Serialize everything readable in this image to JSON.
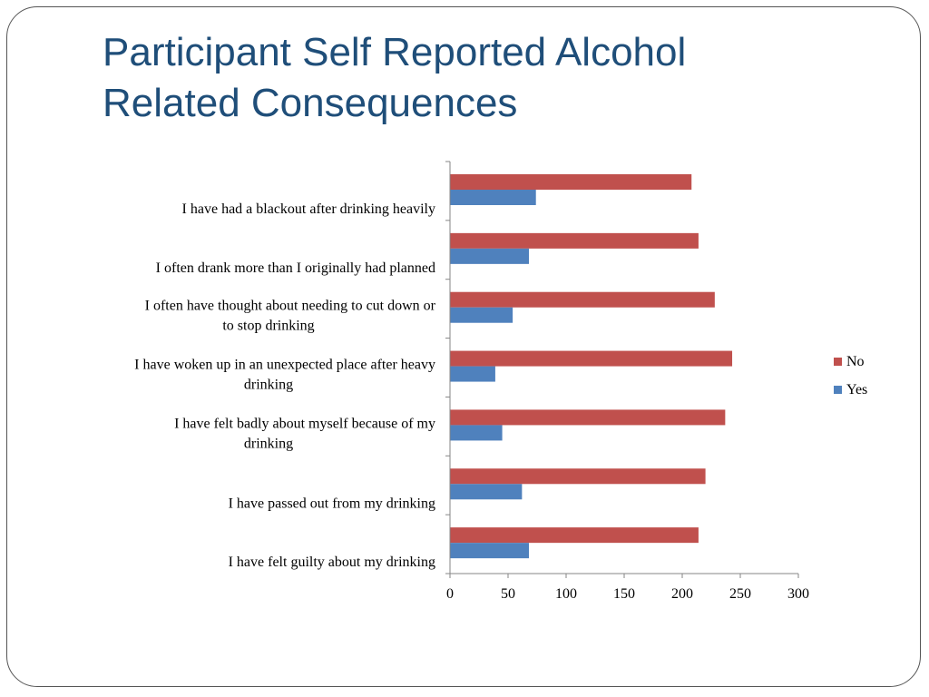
{
  "slide": {
    "title_line1": "Participant Self Reported Alcohol",
    "title_line2": "Related Consequences"
  },
  "chart_data": {
    "type": "bar",
    "orientation": "horizontal",
    "categories": [
      "I have had a blackout after drinking heavily",
      "I often drank more than I originally had planned",
      "I often have thought about needing to cut down or to stop drinking",
      "I have woken up in an unexpected place after heavy drinking",
      "I have felt badly about myself because of my drinking",
      "I have passed out from my drinking",
      "I have felt guilty about my drinking"
    ],
    "category_label_lines": [
      [
        "I have had a blackout after drinking heavily"
      ],
      [
        "I often drank more than I originally had planned"
      ],
      [
        "I often have thought about needing to cut down or",
        "to stop drinking"
      ],
      [
        "I have woken up in an unexpected place after heavy",
        "drinking"
      ],
      [
        "I have felt badly about myself because of my",
        "drinking"
      ],
      [
        "I have passed out from my drinking"
      ],
      [
        "I have felt guilty about my drinking"
      ]
    ],
    "series": [
      {
        "name": "No",
        "color": "#c0504d",
        "values": [
          208,
          214,
          228,
          243,
          237,
          220,
          214
        ]
      },
      {
        "name": "Yes",
        "color": "#4f81bd",
        "values": [
          74,
          68,
          54,
          39,
          45,
          62,
          68
        ]
      }
    ],
    "xlim": [
      0,
      300
    ],
    "xticks": [
      0,
      50,
      100,
      150,
      200,
      250,
      300
    ],
    "xlabel": "",
    "ylabel": "",
    "grid": false,
    "legend": "right"
  }
}
